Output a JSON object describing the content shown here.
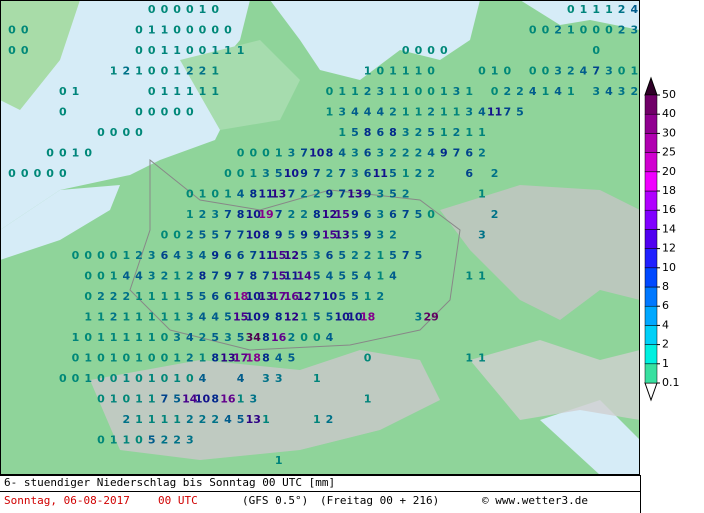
{
  "map": {
    "grid_rows": [
      [
        null,
        null,
        null,
        null,
        null,
        null,
        null,
        null,
        null,
        null,
        null,
        0,
        0,
        0,
        0,
        1,
        0,
        null,
        null,
        null,
        null,
        null,
        null,
        null,
        null,
        null,
        null,
        null,
        null,
        null,
        null,
        null,
        null,
        null,
        null,
        null,
        null,
        null,
        null,
        null,
        null,
        null,
        null,
        null,
        0,
        1,
        1,
        1,
        2,
        4
      ],
      [
        0,
        0,
        null,
        null,
        null,
        null,
        null,
        null,
        null,
        null,
        0,
        1,
        1,
        0,
        0,
        0,
        0,
        0,
        null,
        null,
        null,
        null,
        null,
        null,
        null,
        null,
        null,
        null,
        null,
        null,
        null,
        null,
        null,
        null,
        null,
        null,
        null,
        null,
        null,
        null,
        null,
        0,
        0,
        2,
        1,
        0,
        0,
        0,
        2,
        3
      ],
      [
        0,
        0,
        null,
        null,
        null,
        null,
        null,
        null,
        null,
        null,
        0,
        0,
        1,
        1,
        0,
        0,
        1,
        1,
        1,
        null,
        null,
        null,
        null,
        null,
        null,
        null,
        null,
        null,
        null,
        null,
        null,
        0,
        0,
        0,
        0,
        null,
        null,
        null,
        null,
        null,
        null,
        null,
        null,
        null,
        null,
        null,
        0
      ],
      [
        null,
        null,
        null,
        null,
        null,
        null,
        null,
        null,
        1,
        2,
        1,
        0,
        0,
        1,
        2,
        2,
        1,
        null,
        null,
        null,
        null,
        null,
        null,
        null,
        null,
        null,
        null,
        null,
        1,
        0,
        1,
        1,
        1,
        0,
        null,
        null,
        null,
        0,
        1,
        0,
        null,
        0,
        0,
        3,
        2,
        4,
        7,
        3,
        0,
        1
      ],
      [
        null,
        null,
        null,
        null,
        0,
        1,
        null,
        null,
        null,
        null,
        null,
        0,
        1,
        1,
        1,
        1,
        1,
        null,
        null,
        null,
        null,
        null,
        null,
        null,
        null,
        0,
        1,
        1,
        2,
        3,
        1,
        1,
        0,
        0,
        1,
        3,
        1,
        null,
        0,
        2,
        2,
        4,
        1,
        4,
        1,
        null,
        3,
        4,
        3,
        2
      ],
      [
        null,
        null,
        null,
        null,
        0,
        null,
        null,
        null,
        null,
        null,
        0,
        0,
        0,
        0,
        0,
        null,
        null,
        null,
        null,
        null,
        null,
        null,
        null,
        null,
        null,
        1,
        3,
        4,
        4,
        4,
        2,
        1,
        1,
        2,
        1,
        1,
        3,
        4,
        11,
        7,
        5
      ],
      [
        null,
        null,
        null,
        null,
        null,
        null,
        null,
        0,
        0,
        0,
        0,
        null,
        null,
        null,
        null,
        null,
        null,
        null,
        null,
        null,
        null,
        null,
        null,
        null,
        null,
        null,
        1,
        5,
        8,
        6,
        8,
        3,
        2,
        5,
        1,
        2,
        1,
        1
      ],
      [
        null,
        null,
        null,
        0,
        0,
        1,
        0,
        null,
        null,
        null,
        null,
        null,
        null,
        null,
        null,
        null,
        null,
        null,
        0,
        0,
        0,
        1,
        3,
        7,
        10,
        8,
        4,
        3,
        6,
        3,
        2,
        2,
        2,
        4,
        9,
        7,
        6,
        2
      ],
      [
        0,
        0,
        0,
        0,
        0,
        null,
        null,
        null,
        null,
        null,
        null,
        null,
        null,
        null,
        null,
        null,
        null,
        0,
        0,
        1,
        3,
        5,
        10,
        9,
        7,
        2,
        7,
        3,
        6,
        11,
        5,
        1,
        2,
        2,
        null,
        null,
        6,
        null,
        2
      ],
      [
        null,
        null,
        null,
        null,
        null,
        null,
        null,
        null,
        null,
        null,
        null,
        null,
        null,
        null,
        0,
        1,
        0,
        1,
        4,
        8,
        11,
        13,
        7,
        2,
        2,
        9,
        7,
        13,
        9,
        3,
        5,
        2,
        null,
        null,
        null,
        null,
        null,
        1
      ],
      [
        null,
        null,
        null,
        null,
        null,
        null,
        null,
        null,
        null,
        null,
        null,
        null,
        null,
        null,
        1,
        2,
        3,
        7,
        8,
        10,
        19,
        7,
        2,
        2,
        8,
        12,
        15,
        9,
        6,
        3,
        6,
        7,
        5,
        0,
        null,
        null,
        null,
        null,
        2
      ],
      [
        null,
        null,
        null,
        null,
        null,
        null,
        null,
        null,
        null,
        null,
        null,
        null,
        0,
        0,
        2,
        5,
        5,
        7,
        7,
        10,
        8,
        9,
        5,
        9,
        9,
        15,
        13,
        5,
        9,
        3,
        2,
        null,
        null,
        null,
        null,
        null,
        null,
        3
      ],
      [
        null,
        null,
        null,
        null,
        null,
        0,
        0,
        0,
        0,
        1,
        2,
        3,
        6,
        4,
        3,
        4,
        9,
        6,
        6,
        7,
        11,
        15,
        12,
        5,
        3,
        6,
        5,
        2,
        2,
        1,
        5,
        7,
        5
      ],
      [
        null,
        null,
        null,
        null,
        null,
        null,
        0,
        0,
        1,
        4,
        4,
        3,
        2,
        1,
        2,
        8,
        7,
        9,
        7,
        8,
        7,
        15,
        11,
        14,
        5,
        4,
        5,
        5,
        4,
        1,
        4,
        null,
        null,
        null,
        null,
        null,
        1,
        1
      ],
      [
        null,
        null,
        null,
        null,
        null,
        null,
        0,
        2,
        2,
        2,
        1,
        1,
        1,
        1,
        5,
        5,
        6,
        6,
        18,
        10,
        13,
        17,
        16,
        12,
        7,
        10,
        5,
        5,
        1,
        2
      ],
      [
        null,
        null,
        null,
        null,
        null,
        null,
        1,
        1,
        2,
        1,
        1,
        1,
        1,
        1,
        3,
        4,
        4,
        5,
        15,
        10,
        9,
        8,
        12,
        1,
        5,
        5,
        10,
        10,
        18,
        null,
        null,
        null,
        3,
        29
      ],
      [
        null,
        null,
        null,
        null,
        null,
        1,
        0,
        1,
        1,
        1,
        1,
        1,
        0,
        3,
        4,
        2,
        5,
        3,
        5,
        34,
        8,
        16,
        2,
        0,
        0,
        4
      ],
      [
        null,
        null,
        null,
        null,
        null,
        0,
        1,
        0,
        1,
        0,
        1,
        0,
        0,
        1,
        2,
        1,
        8,
        13,
        17,
        18,
        8,
        4,
        5,
        null,
        null,
        null,
        null,
        null,
        0,
        null,
        null,
        null,
        null,
        null,
        null,
        null,
        1,
        1
      ],
      [
        null,
        null,
        null,
        null,
        0,
        0,
        1,
        0,
        0,
        1,
        0,
        1,
        0,
        1,
        0,
        4,
        null,
        null,
        4,
        null,
        3,
        3,
        null,
        null,
        1
      ],
      [
        null,
        null,
        null,
        null,
        null,
        null,
        null,
        0,
        1,
        0,
        1,
        1,
        7,
        5,
        14,
        10,
        8,
        16,
        1,
        3,
        null,
        null,
        null,
        null,
        null,
        null,
        null,
        null,
        1
      ],
      [
        null,
        null,
        null,
        null,
        null,
        null,
        null,
        null,
        null,
        2,
        1,
        1,
        1,
        1,
        2,
        2,
        2,
        4,
        5,
        13,
        1,
        null,
        null,
        null,
        1,
        2
      ],
      [
        null,
        null,
        null,
        null,
        null,
        null,
        null,
        0,
        1,
        1,
        0,
        5,
        2,
        2,
        3
      ],
      [
        null,
        null,
        null,
        null,
        null,
        null,
        null,
        null,
        null,
        null,
        null,
        null,
        null,
        null,
        null,
        null,
        null,
        null,
        null,
        null,
        null,
        1
      ]
    ],
    "colorbar": {
      "levels": [
        0.1,
        1,
        2,
        4,
        6,
        8,
        10,
        12,
        14,
        16,
        18,
        20,
        25,
        30,
        40,
        50
      ],
      "colors": [
        "#ffffff",
        "#38e0a0",
        "#00f0e0",
        "#00d0f8",
        "#00a8ff",
        "#0078ff",
        "#0048ff",
        "#2020ff",
        "#5000f0",
        "#8000ff",
        "#b000ff",
        "#f000ff",
        "#d000d0",
        "#b000b0",
        "#900090",
        "#700068",
        "#300028"
      ]
    },
    "footer": {
      "description": "6- stuendiger Niederschlag bis Sonntag 00 UTC [mm]",
      "date": "Sonntag, 06-08-2017",
      "time": "00 UTC",
      "model": "(GFS 0.5°)",
      "run": "(Freitag 00 + 216)",
      "credit": "© www.wetter3.de"
    }
  }
}
